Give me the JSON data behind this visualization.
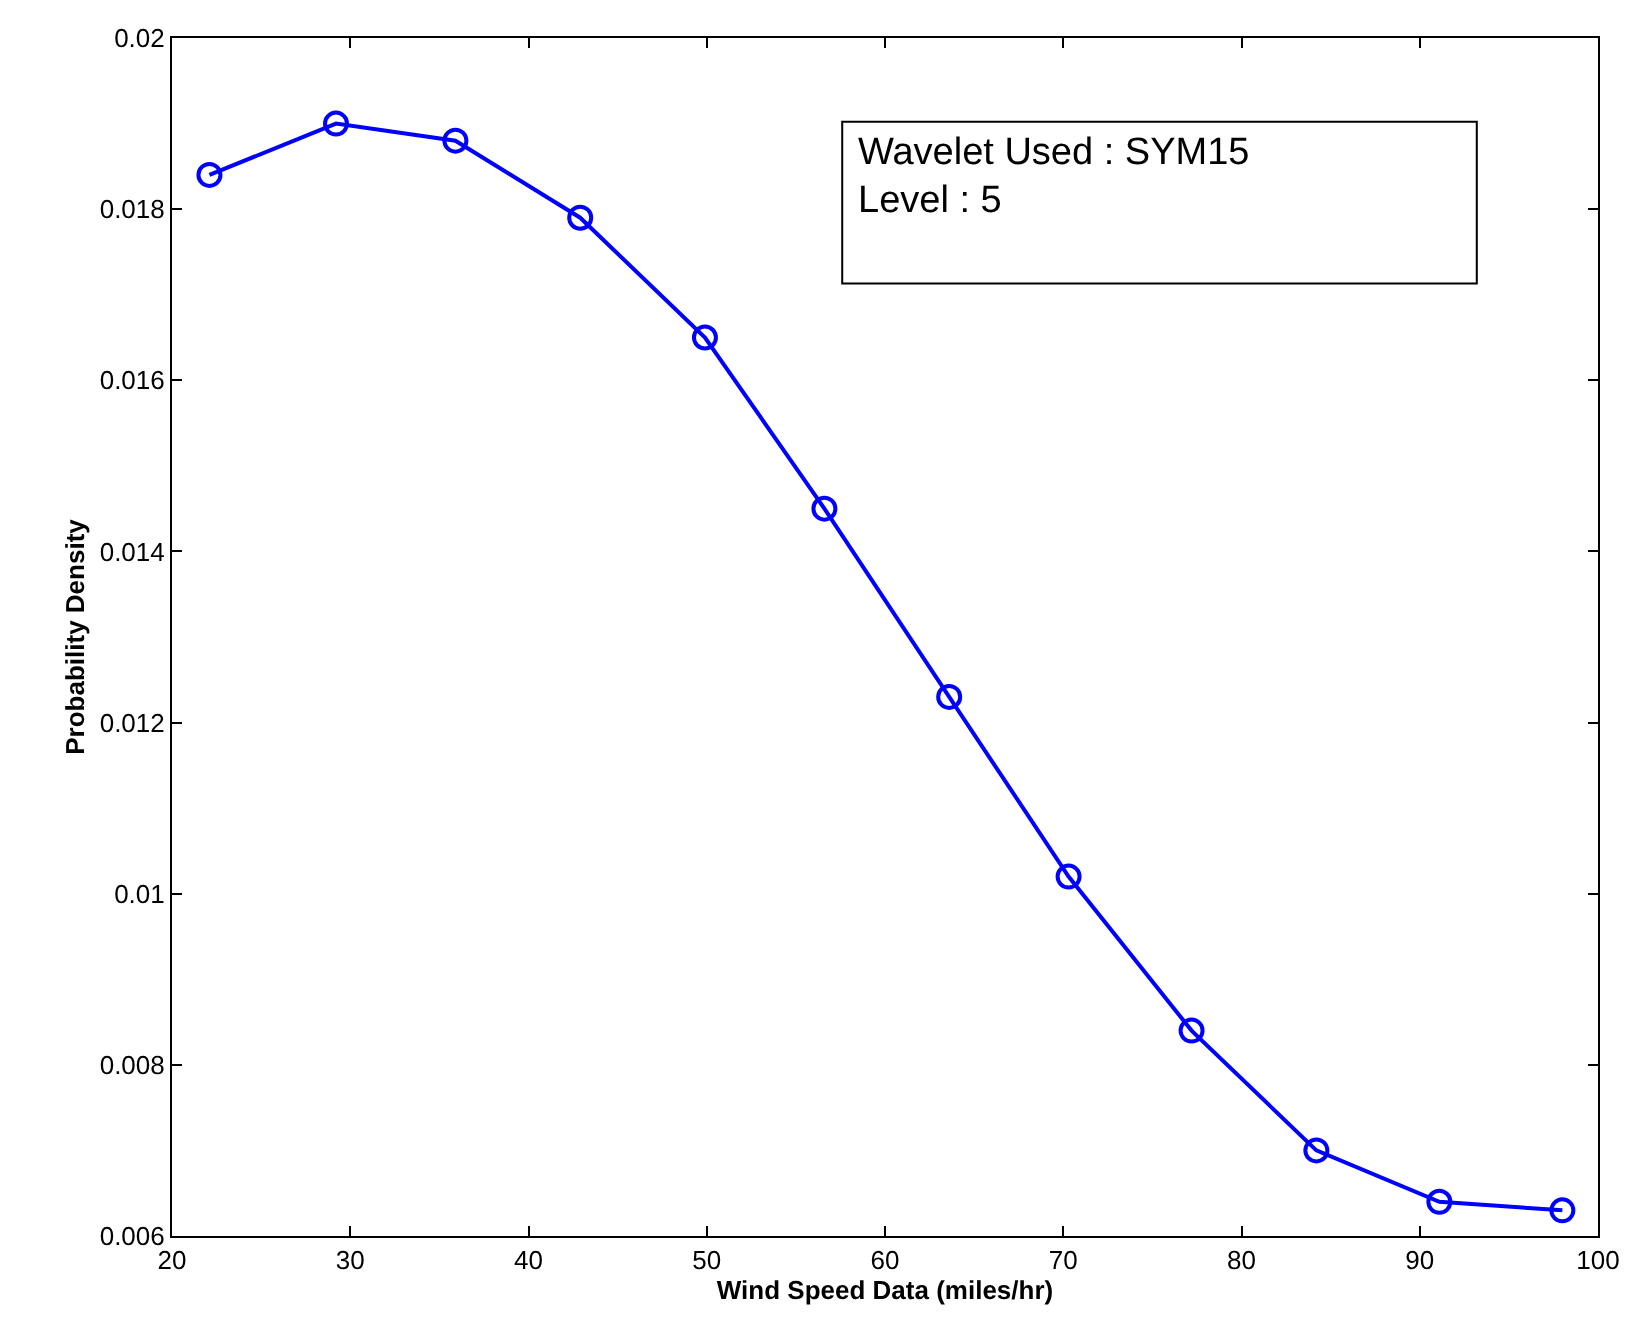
{
  "chart_data": {
    "type": "line",
    "xlabel": "Wind Speed Data (miles/hr)",
    "ylabel": "Probability Density",
    "x": [
      22.1,
      29.2,
      35.9,
      42.9,
      49.9,
      56.6,
      63.6,
      70.3,
      77.2,
      84.2,
      91.1,
      98.0
    ],
    "series": [
      {
        "color": "#0000ff",
        "values": [
          0.0184,
          0.019,
          0.0188,
          0.0179,
          0.0165,
          0.0145,
          0.0123,
          0.0102,
          0.0084,
          0.007,
          0.0064,
          0.0063
        ]
      }
    ],
    "xlim": [
      20,
      100
    ],
    "xticks": [
      20,
      30,
      40,
      50,
      60,
      70,
      80,
      90,
      100
    ],
    "ylim": [
      0.006,
      0.02
    ],
    "yticks": [
      0.006,
      0.008,
      0.01,
      0.012,
      0.014,
      0.016,
      0.018,
      0.02
    ],
    "marker": "circle",
    "line_style": "solid",
    "legend": false,
    "annotations": [
      "Wavelet Used : SYM15",
      "Level : 5"
    ]
  }
}
